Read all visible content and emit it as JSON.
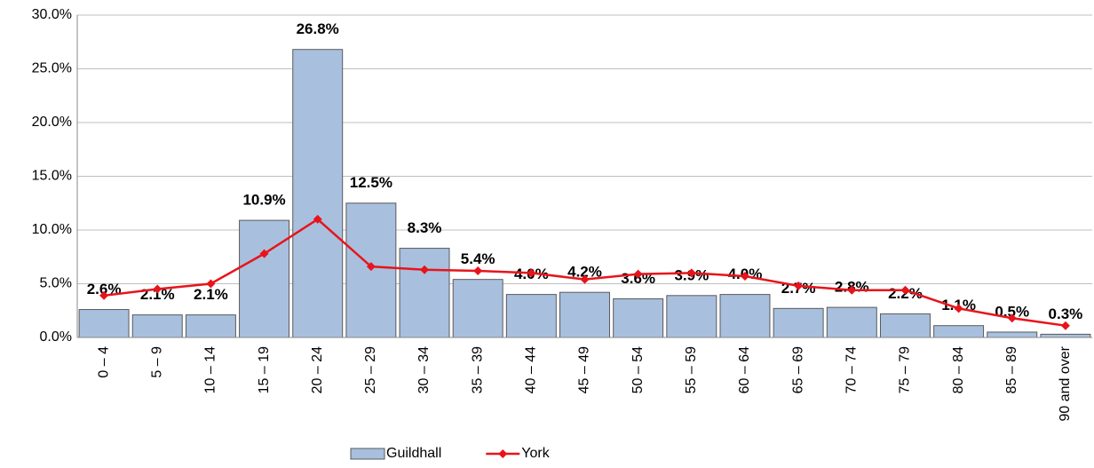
{
  "chart_data": {
    "type": "bar",
    "categories": [
      "0 – 4",
      "5 – 9",
      "10 – 14",
      "15 – 19",
      "20 – 24",
      "25 – 29",
      "30 – 34",
      "35 – 39",
      "40 – 44",
      "45 – 49",
      "50 – 54",
      "55 – 59",
      "60 – 64",
      "65 – 69",
      "70 – 74",
      "75 – 79",
      "80 – 84",
      "85 – 89",
      "90 and over"
    ],
    "series": [
      {
        "name": "Guildhall",
        "type": "bar",
        "color": "#a8c0de",
        "edge": "#59595b",
        "values": [
          2.6,
          2.1,
          2.1,
          10.9,
          26.8,
          12.5,
          8.3,
          5.4,
          4.0,
          4.2,
          3.6,
          3.9,
          4.0,
          2.7,
          2.8,
          2.2,
          1.1,
          0.5,
          0.3
        ],
        "value_labels": [
          "2.6%",
          "2.1%",
          "2.1%",
          "10.9%",
          "26.8%",
          "12.5%",
          "8.3%",
          "5.4%",
          "4.0%",
          "4.2%",
          "3.6%",
          "3.9%",
          "4.0%",
          "2.7%",
          "2.8%",
          "2.2%",
          "1.1%",
          "0.5%",
          "0.3%"
        ]
      },
      {
        "name": "York",
        "type": "line",
        "color": "#e8141b",
        "values": [
          3.9,
          4.5,
          5.0,
          7.8,
          11.0,
          6.6,
          6.3,
          6.2,
          6.0,
          5.4,
          5.9,
          6.0,
          5.7,
          4.8,
          4.4,
          4.4,
          2.7,
          1.8,
          1.1
        ]
      }
    ],
    "ylim": [
      0,
      30
    ],
    "yticks": [
      {
        "value": 0,
        "label": "0.0%"
      },
      {
        "value": 5,
        "label": "5.0%"
      },
      {
        "value": 10,
        "label": "10.0%"
      },
      {
        "value": 15,
        "label": "15.0%"
      },
      {
        "value": 20,
        "label": "20.0%"
      },
      {
        "value": 25,
        "label": "25.0%"
      },
      {
        "value": 30,
        "label": "30.0%"
      }
    ],
    "grid": true
  }
}
